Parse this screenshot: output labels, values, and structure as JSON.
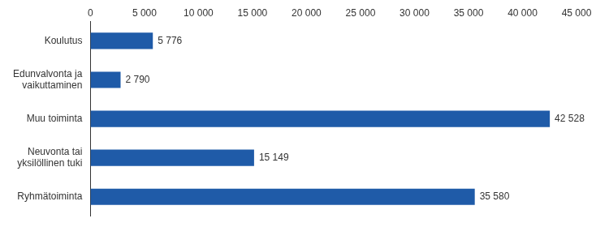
{
  "chart_data": {
    "type": "bar",
    "orientation": "horizontal",
    "categories": [
      "Koulutus",
      [
        "Edunvalvonta ja",
        "vaikuttaminen"
      ],
      "Muu toiminta",
      [
        "Neuvonta tai",
        "yksilöllinen tuki"
      ],
      "Ryhmätoiminta"
    ],
    "values": [
      5776,
      2790,
      42528,
      15149,
      35580
    ],
    "value_labels": [
      "5 776",
      "2 790",
      "42 528",
      "15 149",
      "35 580"
    ],
    "color": "#1f5ba8",
    "xlim": [
      0,
      45000
    ],
    "xticks": [
      0,
      {
        "value": 5000,
        "label": "5 000"
      },
      {
        "value": 10000,
        "label": "10 000"
      },
      {
        "value": 15000,
        "label": "15 000"
      },
      {
        "value": 20000,
        "label": "20 000"
      },
      {
        "value": 25000,
        "label": "25 000"
      },
      {
        "value": 30000,
        "label": "30 000"
      },
      {
        "value": 35000,
        "label": "35 000"
      },
      {
        "value": 40000,
        "label": "40 000"
      },
      {
        "value": 45000,
        "label": "45 000"
      }
    ],
    "grid": false,
    "data_labels": true
  }
}
